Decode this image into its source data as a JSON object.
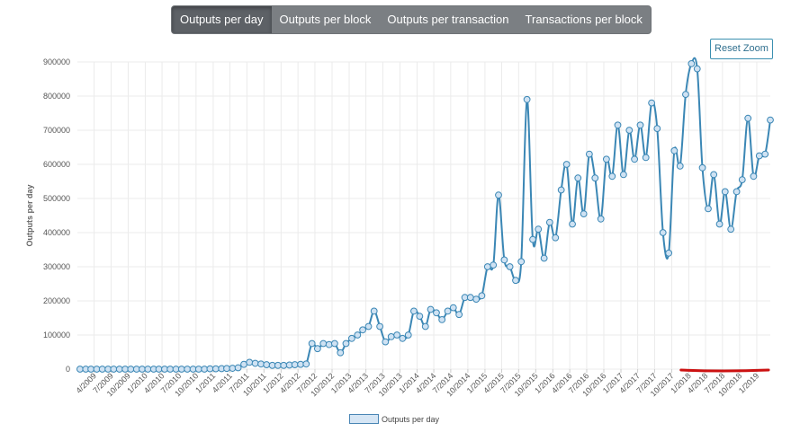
{
  "tabs": [
    {
      "label": "Outputs per day",
      "active": true
    },
    {
      "label": "Outputs per block",
      "active": false
    },
    {
      "label": "Outputs per transaction",
      "active": false
    },
    {
      "label": "Transactions per block",
      "active": false
    }
  ],
  "reset_zoom_label": "Reset Zoom",
  "colors": {
    "line": "#3b87b5",
    "marker_fill": "#cfe2f3",
    "grid": "#ebebeb",
    "tabs_bg": "#7b7f83",
    "tab_active": "#5d6166",
    "annotation": "#cc1111"
  },
  "chart_data": {
    "type": "line",
    "title": "",
    "ylabel": "Outputs per day",
    "xlabel": "",
    "ylim": [
      0,
      900000
    ],
    "yticks": [
      0,
      100000,
      200000,
      300000,
      400000,
      500000,
      600000,
      700000,
      800000,
      900000
    ],
    "xlim": [
      "2009-01-01",
      "2019-03-15"
    ],
    "xticks": [
      "4/2009",
      "7/2009",
      "10/2009",
      "1/2010",
      "4/2010",
      "7/2010",
      "10/2010",
      "1/2011",
      "4/2011",
      "7/2011",
      "10/2011",
      "1/2012",
      "4/2012",
      "7/2012",
      "10/2012",
      "1/2013",
      "4/2013",
      "7/2013",
      "10/2013",
      "1/2014",
      "4/2014",
      "7/2014",
      "10/2014",
      "1/2015",
      "4/2015",
      "7/2015",
      "10/2015",
      "1/2016",
      "4/2016",
      "7/2016",
      "10/2016",
      "1/2017",
      "4/2017",
      "7/2017",
      "10/2017",
      "1/2018",
      "4/2018",
      "7/2018",
      "10/2018",
      "1/2019"
    ],
    "grid": true,
    "legend": {
      "position": "bottom-center"
    },
    "series": [
      {
        "name": "Outputs per day",
        "points": [
          [
            "2009-01-15",
            0
          ],
          [
            "2009-02-15",
            0
          ],
          [
            "2009-03-15",
            0
          ],
          [
            "2009-04-15",
            0
          ],
          [
            "2009-05-15",
            0
          ],
          [
            "2009-06-15",
            0
          ],
          [
            "2009-07-15",
            0
          ],
          [
            "2009-08-15",
            0
          ],
          [
            "2009-09-15",
            0
          ],
          [
            "2009-10-15",
            0
          ],
          [
            "2009-11-15",
            0
          ],
          [
            "2009-12-15",
            0
          ],
          [
            "2010-01-15",
            0
          ],
          [
            "2010-02-15",
            0
          ],
          [
            "2010-03-15",
            0
          ],
          [
            "2010-04-15",
            0
          ],
          [
            "2010-05-15",
            0
          ],
          [
            "2010-06-15",
            0
          ],
          [
            "2010-07-15",
            0
          ],
          [
            "2010-08-15",
            0
          ],
          [
            "2010-09-15",
            0
          ],
          [
            "2010-10-15",
            0
          ],
          [
            "2010-11-15",
            0
          ],
          [
            "2010-12-15",
            1000
          ],
          [
            "2011-01-15",
            1000
          ],
          [
            "2011-02-15",
            1500
          ],
          [
            "2011-03-15",
            2000
          ],
          [
            "2011-04-15",
            2500
          ],
          [
            "2011-05-15",
            4000
          ],
          [
            "2011-06-15",
            14000
          ],
          [
            "2011-07-15",
            20000
          ],
          [
            "2011-08-15",
            17000
          ],
          [
            "2011-09-15",
            15000
          ],
          [
            "2011-10-15",
            13000
          ],
          [
            "2011-11-15",
            11000
          ],
          [
            "2011-12-15",
            11000
          ],
          [
            "2012-01-15",
            11000
          ],
          [
            "2012-02-15",
            12000
          ],
          [
            "2012-03-15",
            13000
          ],
          [
            "2012-04-15",
            14000
          ],
          [
            "2012-05-15",
            15000
          ],
          [
            "2012-06-15",
            75000
          ],
          [
            "2012-07-15",
            60000
          ],
          [
            "2012-08-15",
            75000
          ],
          [
            "2012-09-15",
            72000
          ],
          [
            "2012-10-15",
            75000
          ],
          [
            "2012-11-15",
            48000
          ],
          [
            "2012-12-15",
            75000
          ],
          [
            "2013-01-15",
            90000
          ],
          [
            "2013-02-15",
            100000
          ],
          [
            "2013-03-15",
            115000
          ],
          [
            "2013-04-15",
            125000
          ],
          [
            "2013-05-15",
            170000
          ],
          [
            "2013-06-15",
            125000
          ],
          [
            "2013-07-15",
            80000
          ],
          [
            "2013-08-15",
            95000
          ],
          [
            "2013-09-15",
            100000
          ],
          [
            "2013-10-15",
            90000
          ],
          [
            "2013-11-15",
            100000
          ],
          [
            "2013-12-15",
            170000
          ],
          [
            "2014-01-15",
            155000
          ],
          [
            "2014-02-15",
            125000
          ],
          [
            "2014-03-15",
            175000
          ],
          [
            "2014-04-15",
            165000
          ],
          [
            "2014-05-15",
            145000
          ],
          [
            "2014-06-15",
            170000
          ],
          [
            "2014-07-15",
            180000
          ],
          [
            "2014-08-15",
            160000
          ],
          [
            "2014-09-15",
            210000
          ],
          [
            "2014-10-15",
            210000
          ],
          [
            "2014-11-15",
            205000
          ],
          [
            "2014-12-15",
            215000
          ],
          [
            "2015-01-15",
            300000
          ],
          [
            "2015-02-15",
            305000
          ],
          [
            "2015-03-15",
            510000
          ],
          [
            "2015-04-15",
            320000
          ],
          [
            "2015-05-15",
            300000
          ],
          [
            "2015-06-15",
            260000
          ],
          [
            "2015-07-15",
            315000
          ],
          [
            "2015-08-15",
            790000
          ],
          [
            "2015-09-15",
            380000
          ],
          [
            "2015-10-15",
            410000
          ],
          [
            "2015-11-15",
            325000
          ],
          [
            "2015-12-15",
            430000
          ],
          [
            "2016-01-15",
            385000
          ],
          [
            "2016-02-15",
            525000
          ],
          [
            "2016-03-15",
            600000
          ],
          [
            "2016-04-15",
            425000
          ],
          [
            "2016-05-15",
            560000
          ],
          [
            "2016-06-15",
            455000
          ],
          [
            "2016-07-15",
            630000
          ],
          [
            "2016-08-15",
            560000
          ],
          [
            "2016-09-15",
            440000
          ],
          [
            "2016-10-15",
            615000
          ],
          [
            "2016-11-15",
            565000
          ],
          [
            "2016-12-15",
            715000
          ],
          [
            "2017-01-15",
            570000
          ],
          [
            "2017-02-15",
            700000
          ],
          [
            "2017-03-15",
            615000
          ],
          [
            "2017-04-15",
            715000
          ],
          [
            "2017-05-15",
            620000
          ],
          [
            "2017-06-15",
            780000
          ],
          [
            "2017-07-15",
            705000
          ],
          [
            "2017-08-15",
            400000
          ],
          [
            "2017-09-15",
            340000
          ],
          [
            "2017-10-15",
            640000
          ],
          [
            "2017-11-15",
            595000
          ],
          [
            "2017-12-15",
            805000
          ],
          [
            "2018-01-15",
            895000
          ],
          [
            "2018-02-15",
            880000
          ],
          [
            "2018-03-15",
            590000
          ],
          [
            "2018-04-15",
            470000
          ],
          [
            "2018-05-15",
            570000
          ],
          [
            "2018-06-15",
            425000
          ],
          [
            "2018-07-15",
            520000
          ],
          [
            "2018-08-15",
            410000
          ],
          [
            "2018-09-15",
            520000
          ],
          [
            "2018-10-15",
            555000
          ],
          [
            "2018-11-15",
            735000
          ],
          [
            "2018-12-15",
            565000
          ],
          [
            "2019-01-15",
            625000
          ],
          [
            "2019-02-15",
            630000
          ],
          [
            "2019-03-15",
            730000
          ]
        ]
      }
    ]
  }
}
